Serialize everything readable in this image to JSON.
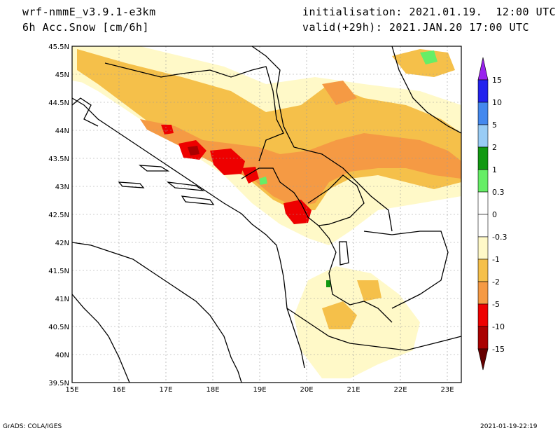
{
  "header": {
    "model": "wrf-nmmE_v3.9.1-e3km",
    "variable": "6h Acc.Snow [cm/6h]",
    "initialisation": "initialisation: 2021.01.19.  12:00 UTC",
    "valid": "valid(+29h): 2021.JAN.20 17:00 UTC"
  },
  "map": {
    "lat_labels": [
      "45.5N",
      "45N",
      "44.5N",
      "44N",
      "43.5N",
      "43N",
      "42.5N",
      "42N",
      "41.5N",
      "41N",
      "40.5N",
      "40N",
      "39.5N"
    ],
    "lon_labels": [
      "15E",
      "16E",
      "17E",
      "18E",
      "19E",
      "20E",
      "21E",
      "22E",
      "23E"
    ],
    "lat_range": [
      39.5,
      45.5
    ],
    "lon_range": [
      15,
      23.3
    ],
    "grid": true
  },
  "colorbar": {
    "labels": [
      "15",
      "10",
      "5",
      "2",
      "1",
      "0.3",
      "0",
      "-0.3",
      "-1",
      "-2",
      "-5",
      "-10",
      "-15"
    ],
    "colors": [
      "#2222ee",
      "#4488ee",
      "#99ccf5",
      "#119911",
      "#66ee66",
      "#ffffff",
      "#ffffff",
      "#fff9c8",
      "#f5c04a",
      "#f59a44",
      "#ee0000",
      "#aa0000",
      "#660000"
    ],
    "top_arrow_color": "#9922ee",
    "bottom_arrow_color": "#660000"
  },
  "footer": {
    "left": "GrADS: COLA/IGES",
    "right": "2021-01-19-22:19"
  }
}
